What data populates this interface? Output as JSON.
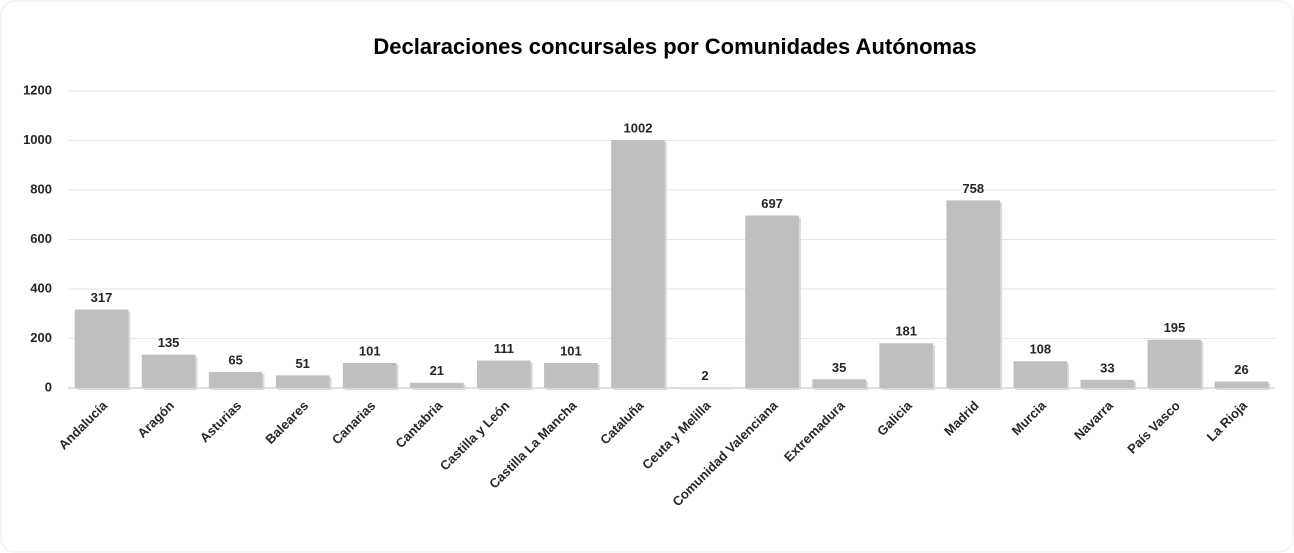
{
  "chart_data": {
    "type": "bar",
    "title": "Declaraciones concursales por Comunidades Autónomas",
    "categories": [
      "Andalucía",
      "Aragón",
      "Asturias",
      "Baleares",
      "Canarias",
      "Cantabria",
      "Castilla y León",
      "Castilla La Mancha",
      "Cataluña",
      "Ceuta y Melilla",
      "Comunidad Valenciana",
      "Extremadura",
      "Galicia",
      "Madrid",
      "Murcia",
      "Navarra",
      "País Vasco",
      "La Rioja"
    ],
    "values": [
      317,
      135,
      65,
      51,
      101,
      21,
      111,
      101,
      1002,
      2,
      697,
      35,
      181,
      758,
      108,
      33,
      195,
      26
    ],
    "color": "#bfbfbf",
    "ylim": [
      0,
      1200
    ],
    "yticks": [
      0,
      200,
      400,
      600,
      800,
      1000,
      1200
    ],
    "grid": true
  }
}
